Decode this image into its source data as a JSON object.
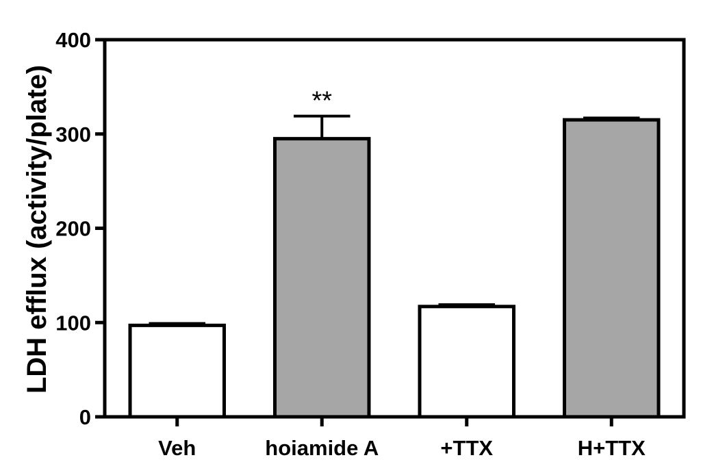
{
  "chart_data": {
    "type": "bar",
    "categories": [
      "Veh",
      "hoiamide A",
      "+TTX",
      "H+TTX"
    ],
    "values": [
      97,
      295,
      117,
      315
    ],
    "errors": [
      2,
      24,
      2,
      2
    ],
    "fill_colors": [
      "#ffffff",
      "#a6a6a6",
      "#ffffff",
      "#a6a6a6"
    ],
    "annotations": [
      "",
      "**",
      "",
      ""
    ],
    "title": "",
    "xlabel": "",
    "ylabel": "LDH efflux (activity/plate)",
    "ylim": [
      0,
      400
    ],
    "yticks": [
      0,
      100,
      200,
      300,
      400
    ],
    "grid": false,
    "legend": "none"
  }
}
